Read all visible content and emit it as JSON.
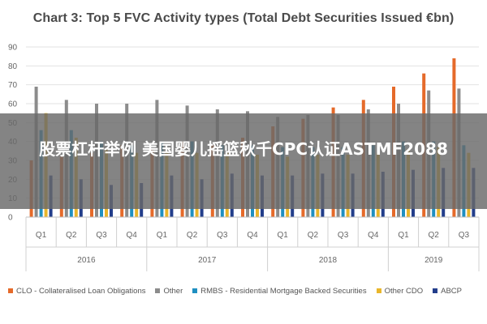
{
  "chart_data": {
    "type": "bar",
    "title": "Chart 3: Top 5 FVC Activity types (Total Debt Securities Issued €bn)",
    "ylim": [
      0,
      90
    ],
    "yticks": [
      0,
      10,
      20,
      30,
      40,
      50,
      60,
      70,
      80,
      90
    ],
    "categories": [
      "Q1",
      "Q2",
      "Q3",
      "Q4",
      "Q1",
      "Q2",
      "Q3",
      "Q4",
      "Q1",
      "Q2",
      "Q3",
      "Q4",
      "Q1",
      "Q2",
      "Q3"
    ],
    "years": [
      {
        "label": "2016",
        "span": 4
      },
      {
        "label": "2017",
        "span": 4
      },
      {
        "label": "2018",
        "span": 4
      },
      {
        "label": "2019",
        "span": 3
      }
    ],
    "series": [
      {
        "name": "CLO - Collateralised Loan Obligations",
        "color": "#e56a2a",
        "values": [
          30,
          32,
          34,
          38,
          36,
          40,
          38,
          42,
          48,
          52,
          58,
          62,
          69,
          76,
          84
        ]
      },
      {
        "name": "Other",
        "color": "#8c8c8c",
        "values": [
          69,
          62,
          60,
          60,
          62,
          59,
          57,
          56,
          53,
          54,
          54,
          57,
          60,
          67,
          68
        ]
      },
      {
        "name": "RMBS - Residential Mortgage Backed Securities",
        "color": "#1f8fc1",
        "values": [
          46,
          46,
          40,
          38,
          40,
          40,
          38,
          38,
          37,
          37,
          37,
          38,
          40,
          40,
          38
        ]
      },
      {
        "name": "Other CDO",
        "color": "#e9b62b",
        "values": [
          55,
          42,
          36,
          34,
          34,
          34,
          34,
          33,
          32,
          33,
          33,
          34,
          36,
          37,
          34
        ]
      },
      {
        "name": "ABCP",
        "color": "#233e8b",
        "values": [
          22,
          20,
          17,
          18,
          22,
          20,
          23,
          22,
          22,
          23,
          23,
          24,
          25,
          26,
          26
        ]
      }
    ],
    "grid": true,
    "legend_position": "bottom"
  },
  "overlay": {
    "text": "股票杠杆举例 美国婴儿摇篮秋千CPC认证ASTMF2088"
  }
}
